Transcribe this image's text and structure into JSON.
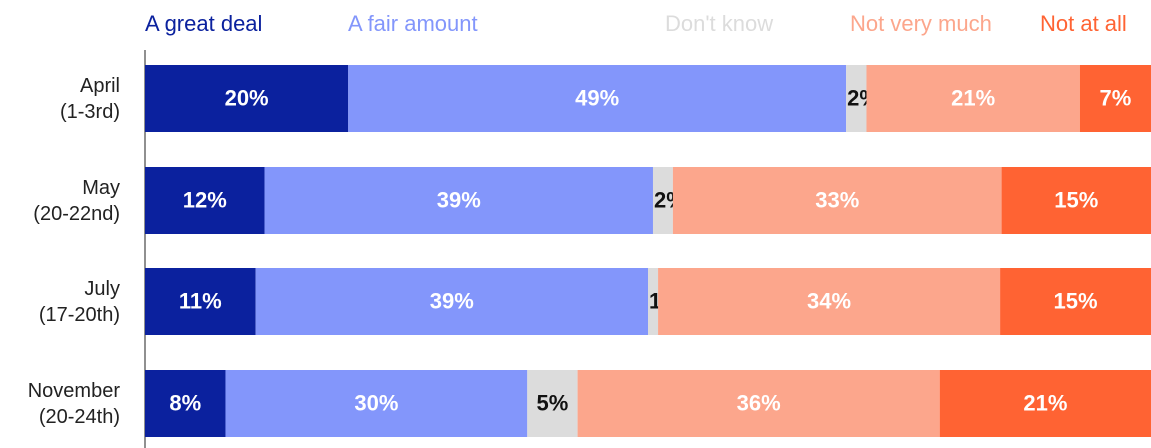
{
  "chart_data": {
    "type": "stacked-barh",
    "categories": [
      "April\n(1-3rd)",
      "May\n(20-22nd)",
      "July\n(17-20th)",
      "November\n(20-24th)"
    ],
    "series": [
      {
        "name": "A great deal",
        "color": "#0b219e",
        "label_color": "#ffffff",
        "values": [
          20,
          12,
          11,
          8
        ],
        "value_labels": [
          "20%",
          "12%",
          "11%",
          "8%"
        ]
      },
      {
        "name": "A fair amount",
        "color": "#8396fb",
        "label_color": "#ffffff",
        "values": [
          49,
          39,
          39,
          30
        ],
        "value_labels": [
          "49%",
          "39%",
          "39%",
          "30%"
        ]
      },
      {
        "name": "Don't know",
        "color": "#dcdcdc",
        "label_color": "#111111",
        "values": [
          2,
          2,
          1,
          5
        ],
        "value_labels": [
          "2%",
          "2%",
          "1%",
          "5%"
        ]
      },
      {
        "name": "Not very much",
        "color": "#fca68c",
        "label_color": "#ffffff",
        "values": [
          21,
          33,
          34,
          36
        ],
        "value_labels": [
          "21%",
          "33%",
          "34%",
          "36%"
        ]
      },
      {
        "name": "Not at all",
        "color": "#ff6333",
        "label_color": "#ffffff",
        "values": [
          7,
          15,
          15,
          21
        ],
        "value_labels": [
          "7%",
          "15%",
          "15%",
          "21%"
        ]
      }
    ]
  }
}
